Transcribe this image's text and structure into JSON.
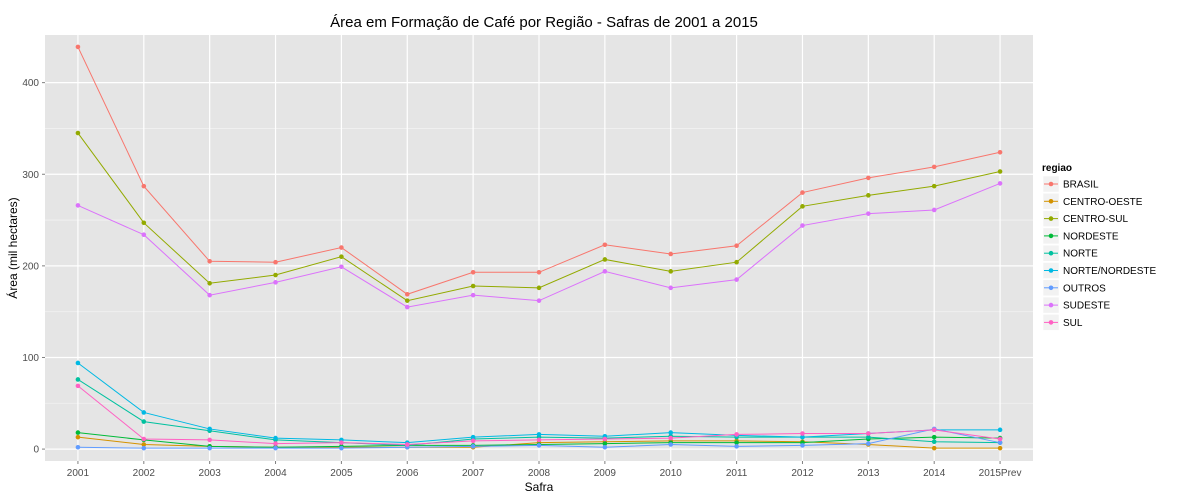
{
  "chart_data": {
    "type": "line",
    "title": "Área em Formação de Café por Região - Safras de 2001 a 2015",
    "xlabel": "Safra",
    "ylabel": "Área (mil hectares)",
    "categories": [
      "2001",
      "2002",
      "2003",
      "2004",
      "2005",
      "2006",
      "2007",
      "2008",
      "2009",
      "2010",
      "2011",
      "2012",
      "2013",
      "2014",
      "2015Prev"
    ],
    "yticks": [
      0,
      100,
      200,
      300,
      400
    ],
    "ylim": [
      -13,
      452
    ],
    "grid": true,
    "legend_title": "regiao",
    "legend_position": "right",
    "series": [
      {
        "name": "BRASIL",
        "color": "#F8766D",
        "values": [
          439,
          287,
          205,
          204,
          220,
          169,
          193,
          193,
          223,
          213,
          222,
          280,
          296,
          308,
          324
        ]
      },
      {
        "name": "CENTRO-OESTE",
        "color": "#D39200",
        "values": [
          13,
          5,
          3,
          2,
          2,
          2,
          2,
          7,
          8,
          9,
          9,
          8,
          5,
          1,
          1
        ]
      },
      {
        "name": "CENTRO-SUL",
        "color": "#93AA00",
        "values": [
          345,
          247,
          181,
          190,
          210,
          162,
          178,
          176,
          207,
          194,
          204,
          265,
          277,
          287,
          303
        ]
      },
      {
        "name": "NORDESTE",
        "color": "#00BA38",
        "values": [
          18,
          10,
          3,
          2,
          3,
          4,
          4,
          5,
          6,
          7,
          7,
          7,
          11,
          13,
          12
        ]
      },
      {
        "name": "NORTE",
        "color": "#00C19F",
        "values": [
          76,
          30,
          20,
          10,
          7,
          4,
          11,
          13,
          12,
          14,
          13,
          13,
          13,
          8,
          7
        ]
      },
      {
        "name": "NORTE/NORDESTE",
        "color": "#00B9E3",
        "values": [
          94,
          40,
          22,
          12,
          10,
          7,
          13,
          16,
          14,
          18,
          15,
          13,
          17,
          21,
          21
        ]
      },
      {
        "name": "OUTROS",
        "color": "#619CFF",
        "values": [
          2,
          1,
          1,
          1,
          1,
          2,
          3,
          4,
          2,
          5,
          3,
          4,
          6,
          22,
          7
        ]
      },
      {
        "name": "SUDESTE",
        "color": "#DB72FB",
        "values": [
          266,
          234,
          168,
          182,
          199,
          155,
          168,
          162,
          194,
          176,
          185,
          244,
          257,
          261,
          290
        ]
      },
      {
        "name": "SUL",
        "color": "#FF61C3",
        "values": [
          69,
          11,
          10,
          6,
          7,
          5,
          9,
          10,
          11,
          12,
          16,
          17,
          17,
          21,
          11
        ]
      }
    ]
  }
}
